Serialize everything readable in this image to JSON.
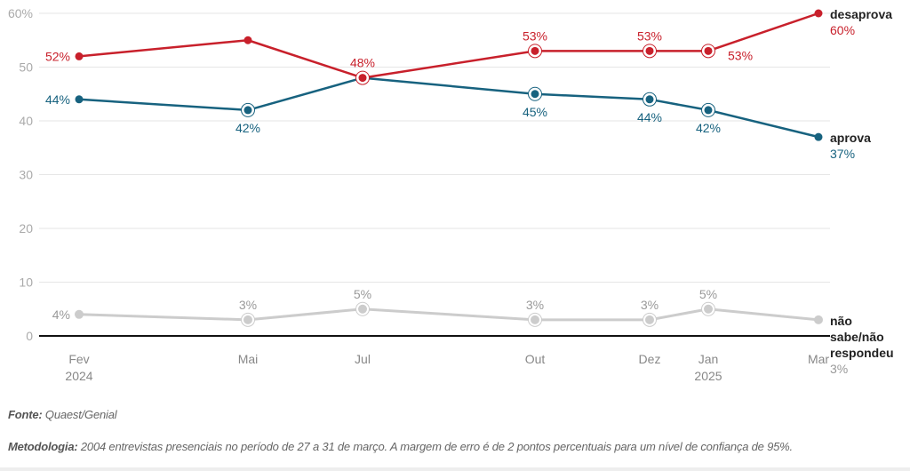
{
  "chart_data": {
    "type": "line",
    "x": [
      "Fev 2024",
      "Mai",
      "Jul",
      "Out",
      "Dez",
      "Jan 2025",
      "Mar"
    ],
    "x_tick_labels": [
      [
        "Fev",
        "2024"
      ],
      [
        "Mai"
      ],
      [
        "Jul"
      ],
      [
        "Out"
      ],
      [
        "Dez"
      ],
      [
        "Jan",
        "2025"
      ],
      [
        "Mar"
      ]
    ],
    "ylim": [
      0,
      60
    ],
    "y_ticks": [
      0,
      10,
      20,
      30,
      40,
      50,
      60
    ],
    "y_tick_labels": [
      "0",
      "10",
      "20",
      "30",
      "40",
      "50",
      "60%"
    ],
    "grid": true,
    "series": [
      {
        "name": "desaprova",
        "color": "#c8202b",
        "values": [
          52,
          55,
          48,
          53,
          53,
          53,
          60
        ],
        "labels": [
          "52%",
          "",
          "48%",
          "53%",
          "53%",
          "53%",
          "60%"
        ],
        "highlighted": [
          false,
          false,
          true,
          true,
          true,
          true,
          false
        ]
      },
      {
        "name": "aprova",
        "color": "#17627f",
        "values": [
          44,
          42,
          48,
          45,
          44,
          42,
          37
        ],
        "labels": [
          "44%",
          "42%",
          "",
          "45%",
          "44%",
          "42%",
          "37%"
        ],
        "highlighted": [
          false,
          true,
          false,
          true,
          true,
          true,
          false
        ]
      },
      {
        "name": "não sabe/não respondeu",
        "name_lines": [
          "não",
          "sabe/não",
          "respondeu"
        ],
        "color": "#cccccc",
        "label_color": "#999999",
        "values": [
          4,
          3,
          5,
          3,
          3,
          5,
          3
        ],
        "labels": [
          "4%",
          "3%",
          "5%",
          "3%",
          "3%",
          "5%",
          "3%"
        ],
        "highlighted": [
          false,
          true,
          true,
          true,
          true,
          true,
          false
        ]
      }
    ]
  },
  "footer": {
    "fonte_label": "Fonte:",
    "fonte_text": " Quaest/Genial",
    "metodologia_label": "Metodologia:",
    "metodologia_text": " 2004 entrevistas presenciais no período de 27 a 31 de março. A margem de erro é de 2 pontos percentuais para um nível de confiança de 95%."
  }
}
